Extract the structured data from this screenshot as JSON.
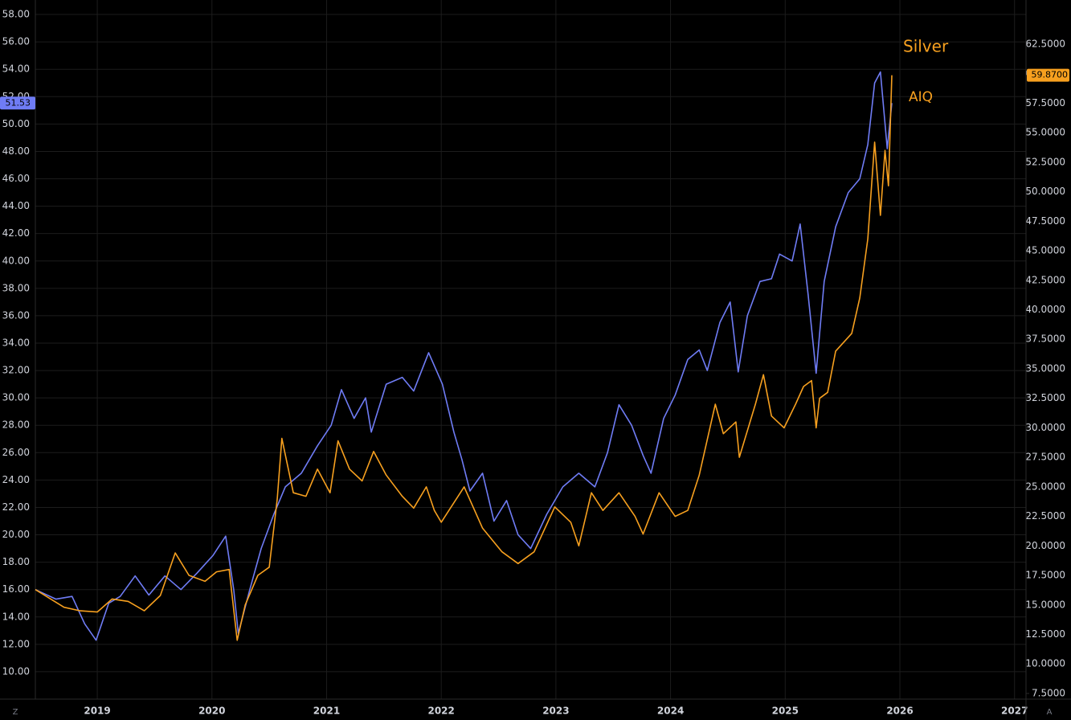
{
  "chart_data": {
    "type": "line",
    "xlim": [
      2018.46,
      2027.1
    ],
    "xticks": [
      2019,
      2020,
      2021,
      2022,
      2023,
      2024,
      2025,
      2026,
      2027
    ],
    "ylim": [
      8,
      59.06
    ],
    "yticks": [
      {
        "value": 10,
        "label": "10.00"
      },
      {
        "value": 12,
        "label": "12.00"
      },
      {
        "value": 14,
        "label": "14.00"
      },
      {
        "value": 16,
        "label": "16.00"
      },
      {
        "value": 18,
        "label": "18.00"
      },
      {
        "value": 20,
        "label": "20.00"
      },
      {
        "value": 22,
        "label": "22.00"
      },
      {
        "value": 24,
        "label": "24.00"
      },
      {
        "value": 26,
        "label": "26.00"
      },
      {
        "value": 28,
        "label": "28.00"
      },
      {
        "value": 30,
        "label": "30.00"
      },
      {
        "value": 32,
        "label": "32.00"
      },
      {
        "value": 34,
        "label": "34.00"
      },
      {
        "value": 36,
        "label": "36.00"
      },
      {
        "value": 38,
        "label": "38.00"
      },
      {
        "value": 40,
        "label": "40.00"
      },
      {
        "value": 42,
        "label": "42.00"
      },
      {
        "value": 44,
        "label": "44.00"
      },
      {
        "value": 46,
        "label": "46.00"
      },
      {
        "value": 48,
        "label": "48.00"
      },
      {
        "value": 50,
        "label": "50.00"
      },
      {
        "value": 52,
        "label": "52.00"
      },
      {
        "value": 54,
        "label": "54.00"
      },
      {
        "value": 56,
        "label": "56.00"
      },
      {
        "value": 58,
        "label": "58.00"
      }
    ],
    "y2lim": [
      7.02,
      66.24
    ],
    "y2ticks": [
      {
        "value": 7.5,
        "label": "7.5000"
      },
      {
        "value": 10,
        "label": "10.0000"
      },
      {
        "value": 12.5,
        "label": "12.5000"
      },
      {
        "value": 15,
        "label": "15.0000"
      },
      {
        "value": 17.5,
        "label": "17.5000"
      },
      {
        "value": 20,
        "label": "20.0000"
      },
      {
        "value": 22.5,
        "label": "22.5000"
      },
      {
        "value": 25,
        "label": "25.0000"
      },
      {
        "value": 27.5,
        "label": "27.5000"
      },
      {
        "value": 30,
        "label": "30.0000"
      },
      {
        "value": 32.5,
        "label": "32.5000"
      },
      {
        "value": 35,
        "label": "35.0000"
      },
      {
        "value": 37.5,
        "label": "37.5000"
      },
      {
        "value": 40,
        "label": "40.0000"
      },
      {
        "value": 42.5,
        "label": "42.5000"
      },
      {
        "value": 45,
        "label": "45.0000"
      },
      {
        "value": 47.5,
        "label": "47.5000"
      },
      {
        "value": 50,
        "label": "50.0000"
      },
      {
        "value": 52.5,
        "label": "52.5000"
      },
      {
        "value": 55,
        "label": "55.0000"
      },
      {
        "value": 57.5,
        "label": "57.5000"
      },
      {
        "value": 60,
        "label": "60.0000"
      },
      {
        "value": 62.5,
        "label": "62.5000"
      }
    ],
    "grid": true,
    "controls": [
      "Z",
      "A"
    ],
    "series": [
      {
        "name": "AIQ",
        "color": "#6f7cf5",
        "last_label": "51.53",
        "x": [
          2018.46,
          2018.64,
          2018.78,
          2018.89,
          2018.99,
          2019.1,
          2019.2,
          2019.33,
          2019.45,
          2019.59,
          2019.73,
          2019.87,
          2020.01,
          2020.12,
          2020.19,
          2020.23,
          2020.33,
          2020.43,
          2020.54,
          2020.64,
          2020.78,
          2020.92,
          2021.04,
          2021.13,
          2021.24,
          2021.34,
          2021.39,
          2021.52,
          2021.66,
          2021.76,
          2021.89,
          2022.01,
          2022.11,
          2022.18,
          2022.25,
          2022.36,
          2022.46,
          2022.57,
          2022.67,
          2022.78,
          2022.92,
          2023.06,
          2023.2,
          2023.34,
          2023.45,
          2023.55,
          2023.66,
          2023.76,
          2023.83,
          2023.94,
          2024.04,
          2024.15,
          2024.25,
          2024.32,
          2024.43,
          2024.52,
          2024.59,
          2024.67,
          2024.78,
          2024.88,
          2024.95,
          2025.06,
          2025.13,
          2025.2,
          2025.27,
          2025.34,
          2025.44,
          2025.55,
          2025.65,
          2025.72,
          2025.78,
          2025.83,
          2025.89,
          2025.93
        ],
        "values": [
          16,
          15.3,
          15.5,
          13.5,
          12.3,
          15,
          15.5,
          17,
          15.6,
          17,
          16,
          17.2,
          18.5,
          19.9,
          16,
          12.8,
          16,
          19,
          21.5,
          23.5,
          24.5,
          26.5,
          28,
          30.6,
          28.5,
          30,
          27.5,
          31,
          31.5,
          30.5,
          33.3,
          31,
          27.5,
          25.5,
          23.2,
          24.5,
          21,
          22.5,
          20,
          19,
          21.5,
          23.5,
          24.5,
          23.5,
          26,
          29.5,
          28,
          25.8,
          24.5,
          28.5,
          30.2,
          32.8,
          33.5,
          32,
          35.5,
          37,
          31.9,
          36,
          38.5,
          38.7,
          40.5,
          40,
          42.7,
          37.5,
          31.8,
          38.5,
          42.5,
          45,
          46,
          48.5,
          53,
          53.8,
          48.2,
          51.53
        ]
      },
      {
        "name": "Silver",
        "color": "#f7a01f",
        "axis": "y2",
        "last_label": "59.8700",
        "x": [
          2018.46,
          2018.71,
          2018.85,
          2019.0,
          2019.13,
          2019.27,
          2019.41,
          2019.55,
          2019.68,
          2019.8,
          2019.94,
          2020.04,
          2020.15,
          2020.22,
          2020.29,
          2020.4,
          2020.5,
          2020.57,
          2020.61,
          2020.71,
          2020.82,
          2020.92,
          2021.03,
          2021.1,
          2021.2,
          2021.31,
          2021.41,
          2021.52,
          2021.66,
          2021.76,
          2021.87,
          2021.94,
          2022.0,
          2022.2,
          2022.36,
          2022.53,
          2022.67,
          2022.81,
          2022.99,
          2023.13,
          2023.2,
          2023.31,
          2023.41,
          2023.55,
          2023.69,
          2023.76,
          2023.9,
          2024.04,
          2024.15,
          2024.25,
          2024.32,
          2024.39,
          2024.46,
          2024.57,
          2024.6,
          2024.74,
          2024.81,
          2024.88,
          2024.99,
          2025.09,
          2025.16,
          2025.23,
          2025.27,
          2025.3,
          2025.37,
          2025.44,
          2025.58,
          2025.65,
          2025.72,
          2025.78,
          2025.83,
          2025.87,
          2025.9,
          2025.93
        ],
        "values": [
          16.3,
          14.8,
          14.5,
          14.4,
          15.5,
          15.3,
          14.5,
          15.8,
          19.4,
          17.5,
          17,
          17.8,
          18,
          12,
          15,
          17.5,
          18.2,
          24,
          29.1,
          24.5,
          24.2,
          26.5,
          24.5,
          28.9,
          26.5,
          25.5,
          28,
          26,
          24.2,
          23.2,
          25,
          23,
          22,
          25,
          21.5,
          19.5,
          18.5,
          19.5,
          23.3,
          22,
          20,
          24.5,
          23,
          24.5,
          22.5,
          21,
          24.5,
          22.5,
          23,
          26,
          29,
          32,
          29.5,
          30.5,
          27.5,
          32,
          34.5,
          31,
          30,
          32,
          33.5,
          34,
          30,
          32.5,
          33,
          36.5,
          38,
          41,
          46,
          54.2,
          48,
          53.5,
          50.5,
          59.87
        ]
      }
    ]
  }
}
